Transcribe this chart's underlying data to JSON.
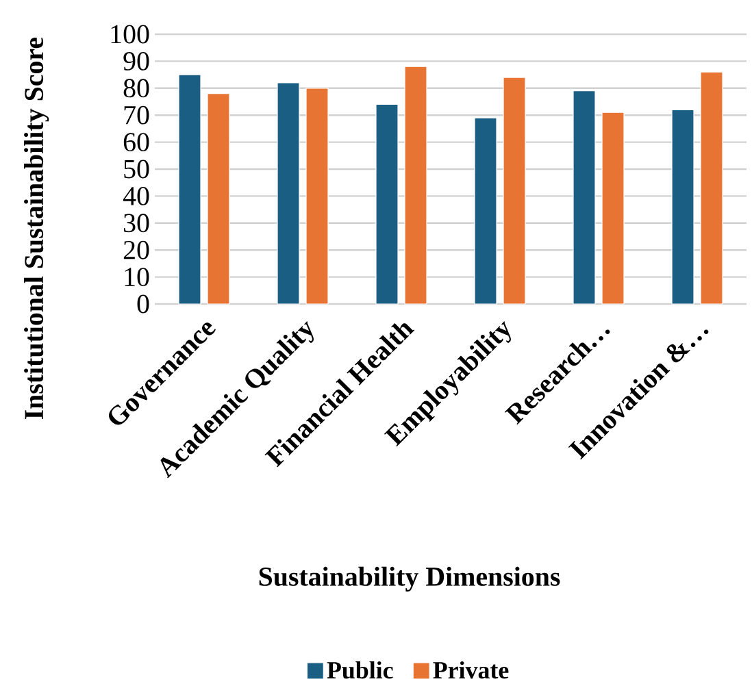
{
  "chart_data": {
    "type": "bar",
    "xlabel": "Sustainability Dimensions",
    "ylabel": "Institutional Sustainability Score",
    "categories": [
      "Governance",
      "Academic Quality",
      "Financial Health",
      "Employability",
      "Research…",
      "Innovation &…"
    ],
    "series": [
      {
        "name": "Public",
        "color": "#1a5e83",
        "values": [
          85,
          82,
          74,
          69,
          79,
          72
        ]
      },
      {
        "name": "Private",
        "color": "#e87434",
        "values": [
          78,
          80,
          88,
          84,
          71,
          86
        ]
      }
    ],
    "ylim": [
      0,
      100
    ],
    "yticks": [
      0,
      10,
      20,
      30,
      40,
      50,
      60,
      70,
      80,
      90,
      100
    ],
    "grid": "y",
    "legend": "bottom"
  }
}
